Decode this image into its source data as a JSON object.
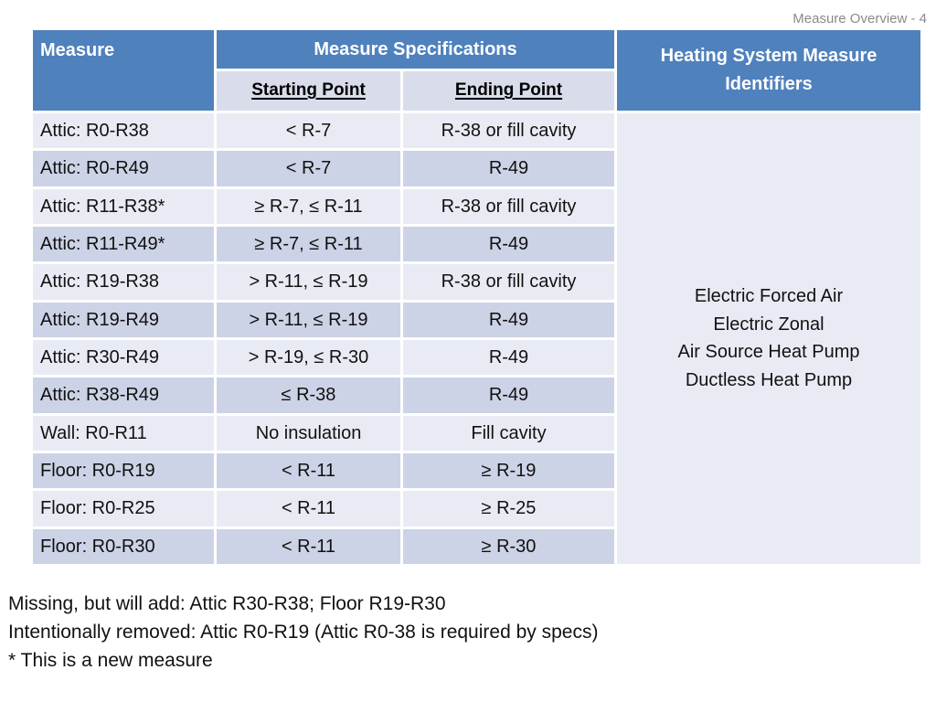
{
  "slide": {
    "label": "Measure Overview - 4"
  },
  "table": {
    "header": {
      "measure": "Measure",
      "specifications": "Measure Specifications",
      "starting_point": "Starting Point",
      "ending_point": "Ending Point",
      "identifiers": "Heating System Measure Identifiers"
    },
    "rows": [
      {
        "measure": "Attic: R0-R38",
        "starting": "< R-7",
        "ending": "R-38 or fill cavity"
      },
      {
        "measure": "Attic: R0-R49",
        "starting": "< R-7",
        "ending": "R-49"
      },
      {
        "measure": "Attic: R11-R38*",
        "starting": "≥ R-7, ≤ R-11",
        "ending": "R-38 or fill cavity"
      },
      {
        "measure": "Attic: R11-R49*",
        "starting": "≥ R-7, ≤ R-11",
        "ending": "R-49"
      },
      {
        "measure": "Attic: R19-R38",
        "starting": "> R-11, ≤ R-19",
        "ending": "R-38 or fill cavity"
      },
      {
        "measure": "Attic: R19-R49",
        "starting": "> R-11, ≤ R-19",
        "ending": "R-49"
      },
      {
        "measure": "Attic: R30-R49",
        "starting": "> R-19, ≤ R-30",
        "ending": "R-49"
      },
      {
        "measure": "Attic: R38-R49",
        "starting": "≤ R-38",
        "ending": "R-49"
      },
      {
        "measure": "Wall: R0-R11",
        "starting": "No insulation",
        "ending": "Fill cavity"
      },
      {
        "measure": "Floor: R0-R19",
        "starting": "< R-11",
        "ending": "≥ R-19"
      },
      {
        "measure": "Floor: R0-R25",
        "starting": "< R-11",
        "ending": "≥ R-25"
      },
      {
        "measure": "Floor: R0-R30",
        "starting": "< R-11",
        "ending": "≥ R-30"
      }
    ],
    "identifier_lines": [
      "Electric Forced Air",
      "Electric Zonal",
      "Air Source Heat Pump",
      "Ductless Heat Pump"
    ]
  },
  "notes": {
    "line1": "Missing, but will add: Attic R30-R38; Floor R19-R30",
    "line2": "Intentionally removed: Attic R0-R19 (Attic R0-38 is required by specs)",
    "line3": "* This is a new measure"
  },
  "colors": {
    "header_blue": "#4f81bd",
    "subheader_band": "#d9ddeb",
    "row_band_light": "#e9ebf4",
    "row_band_dark": "#cdd3e6",
    "slide_label_gray": "#8a8a8a",
    "body_text": "#111111",
    "header_text": "#ffffff"
  }
}
